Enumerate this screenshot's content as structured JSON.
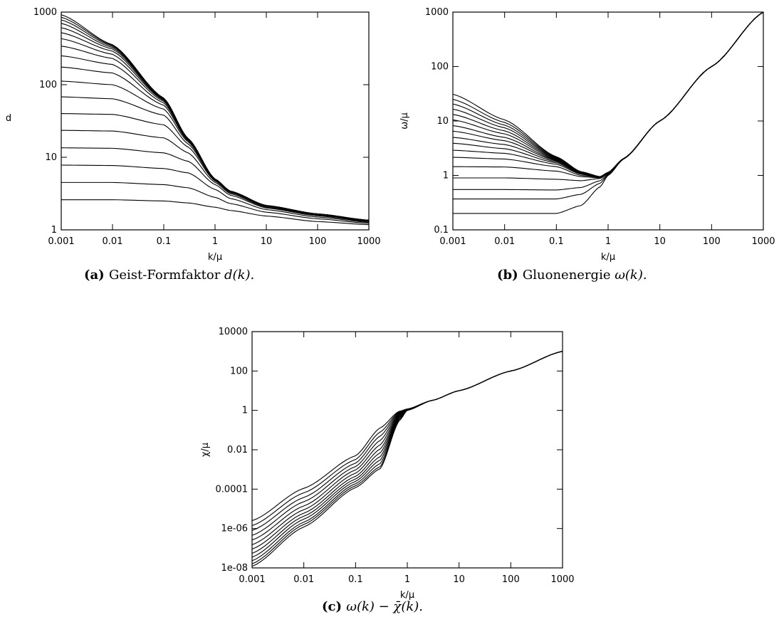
{
  "chart_data": [
    {
      "type": "line",
      "panel": "a",
      "xlabel": "k/μ",
      "ylabel": "d",
      "xscale": "log",
      "yscale": "log",
      "xlim": [
        0.001,
        1000
      ],
      "ylim": [
        1,
        1000
      ],
      "xticks": [
        0.001,
        0.01,
        0.1,
        1,
        10,
        100,
        1000
      ],
      "xtick_labels": [
        "0.001",
        "0.01",
        "0.1",
        "1",
        "10",
        "100",
        "1000"
      ],
      "yticks": [
        1,
        10,
        100,
        1000
      ],
      "ytick_labels": [
        "1",
        "10",
        "100",
        "1000"
      ],
      "grid": false,
      "caption_tag": "(a)",
      "caption_text": "Geist-Formfaktor",
      "caption_math": "d(k).",
      "x": [
        0.001,
        0.01,
        0.1,
        0.3,
        1,
        2,
        10,
        100,
        1000
      ],
      "series": [
        {
          "values": [
            2.6,
            2.6,
            2.5,
            2.35,
            2.05,
            1.85,
            1.55,
            1.3,
            1.18
          ]
        },
        {
          "values": [
            4.5,
            4.5,
            4.2,
            3.8,
            2.8,
            2.3,
            1.75,
            1.42,
            1.23
          ]
        },
        {
          "values": [
            7.8,
            7.7,
            7.0,
            6.1,
            3.6,
            2.7,
            1.9,
            1.5,
            1.27
          ]
        },
        {
          "values": [
            13.5,
            13.3,
            11.5,
            8.8,
            4.2,
            3.0,
            2.0,
            1.56,
            1.3
          ]
        },
        {
          "values": [
            23.5,
            23,
            18.5,
            11.5,
            4.5,
            3.15,
            2.05,
            1.6,
            1.32
          ]
        },
        {
          "values": [
            40,
            39,
            28,
            13.8,
            4.7,
            3.25,
            2.1,
            1.62,
            1.33
          ]
        },
        {
          "values": [
            68,
            64,
            38,
            15.2,
            4.8,
            3.3,
            2.12,
            1.63,
            1.34
          ]
        },
        {
          "values": [
            112,
            100,
            46,
            16.2,
            4.85,
            3.35,
            2.13,
            1.64,
            1.35
          ]
        },
        {
          "values": [
            175,
            145,
            52,
            16.8,
            4.9,
            3.37,
            2.14,
            1.64,
            1.35
          ]
        },
        {
          "values": [
            250,
            190,
            56,
            17.2,
            4.92,
            3.38,
            2.15,
            1.65,
            1.35
          ]
        },
        {
          "values": [
            340,
            230,
            59,
            17.5,
            4.95,
            3.39,
            2.15,
            1.65,
            1.35
          ]
        },
        {
          "values": [
            430,
            262,
            61,
            17.7,
            4.97,
            3.4,
            2.16,
            1.65,
            1.35
          ]
        },
        {
          "values": [
            520,
            290,
            62,
            17.8,
            4.98,
            3.4,
            2.16,
            1.65,
            1.35
          ]
        },
        {
          "values": [
            610,
            310,
            63,
            17.9,
            4.99,
            3.41,
            2.16,
            1.65,
            1.35
          ]
        },
        {
          "values": [
            700,
            325,
            64,
            18,
            5,
            3.41,
            2.16,
            1.66,
            1.36
          ]
        },
        {
          "values": [
            780,
            338,
            64.5,
            18,
            5,
            3.41,
            2.16,
            1.66,
            1.36
          ]
        },
        {
          "values": [
            850,
            348,
            65,
            18.1,
            5,
            3.42,
            2.17,
            1.66,
            1.36
          ]
        },
        {
          "values": [
            920,
            355,
            65.3,
            18.1,
            5.01,
            3.42,
            2.17,
            1.66,
            1.36
          ]
        }
      ]
    },
    {
      "type": "line",
      "panel": "b",
      "xlabel": "k/μ",
      "ylabel": "ω/μ",
      "xscale": "log",
      "yscale": "log",
      "xlim": [
        0.001,
        1000
      ],
      "ylim": [
        0.1,
        1000
      ],
      "xticks": [
        0.001,
        0.01,
        0.1,
        1,
        10,
        100,
        1000
      ],
      "xtick_labels": [
        "0.001",
        "0.01",
        "0.1",
        "1",
        "10",
        "100",
        "1000"
      ],
      "yticks": [
        0.1,
        1,
        10,
        100,
        1000
      ],
      "ytick_labels": [
        "0.1",
        "1",
        "10",
        "100",
        "1000"
      ],
      "grid": false,
      "caption_tag": "(b)",
      "caption_text": "Gluonenergie",
      "caption_math": "ω(k).",
      "x": [
        0.001,
        0.01,
        0.1,
        0.3,
        0.7,
        1,
        2,
        10,
        100,
        1000
      ],
      "series": [
        {
          "values": [
            0.2,
            0.2,
            0.2,
            0.28,
            0.62,
            1.0,
            2.0,
            10,
            100,
            1000
          ]
        },
        {
          "values": [
            0.37,
            0.37,
            0.37,
            0.45,
            0.72,
            1.02,
            2.0,
            10,
            100,
            1000
          ]
        },
        {
          "values": [
            0.55,
            0.55,
            0.54,
            0.6,
            0.8,
            1.05,
            2.0,
            10,
            100,
            1000
          ]
        },
        {
          "values": [
            0.9,
            0.9,
            0.85,
            0.8,
            0.88,
            1.08,
            2.02,
            10,
            100,
            1000
          ]
        },
        {
          "values": [
            1.45,
            1.43,
            1.2,
            0.95,
            0.9,
            1.1,
            2.03,
            10,
            100,
            1000
          ]
        },
        {
          "values": [
            2.15,
            2.0,
            1.45,
            1.0,
            0.92,
            1.11,
            2.03,
            10,
            100,
            1000
          ]
        },
        {
          "values": [
            2.9,
            2.55,
            1.6,
            1.05,
            0.92,
            1.12,
            2.03,
            10,
            100,
            1000
          ]
        },
        {
          "values": [
            3.9,
            3.1,
            1.7,
            1.08,
            0.93,
            1.12,
            2.03,
            10,
            100,
            1000
          ]
        },
        {
          "values": [
            5.0,
            3.7,
            1.78,
            1.1,
            0.93,
            1.12,
            2.04,
            10,
            100,
            1000
          ]
        },
        {
          "values": [
            6.5,
            4.35,
            1.85,
            1.12,
            0.94,
            1.13,
            2.04,
            10,
            100,
            1000
          ]
        },
        {
          "values": [
            8.2,
            5.0,
            1.9,
            1.13,
            0.94,
            1.13,
            2.04,
            10,
            100,
            1000
          ]
        },
        {
          "values": [
            10.5,
            5.8,
            1.95,
            1.14,
            0.94,
            1.13,
            2.04,
            10,
            100,
            1000
          ]
        },
        {
          "values": [
            13.2,
            6.6,
            2.0,
            1.15,
            0.94,
            1.13,
            2.04,
            10,
            100,
            1000
          ]
        },
        {
          "values": [
            16.5,
            7.5,
            2.05,
            1.15,
            0.95,
            1.13,
            2.04,
            10,
            100,
            1000
          ]
        },
        {
          "values": [
            20.5,
            8.4,
            2.1,
            1.16,
            0.95,
            1.13,
            2.04,
            10,
            100,
            1000
          ]
        },
        {
          "values": [
            25,
            9.4,
            2.15,
            1.16,
            0.95,
            1.13,
            2.04,
            10,
            100,
            1000
          ]
        },
        {
          "values": [
            31,
            10.5,
            2.2,
            1.17,
            0.95,
            1.14,
            2.05,
            10,
            100,
            1000
          ]
        }
      ]
    },
    {
      "type": "line",
      "panel": "c",
      "xlabel": "k/μ",
      "ylabel": "χ/μ",
      "xscale": "log",
      "yscale": "log",
      "xlim": [
        0.001,
        1000
      ],
      "ylim": [
        1e-08,
        10000
      ],
      "xticks": [
        0.001,
        0.01,
        0.1,
        1,
        10,
        100,
        1000
      ],
      "xtick_labels": [
        "0.001",
        "0.01",
        "0.1",
        "1",
        "10",
        "100",
        "1000"
      ],
      "yticks": [
        1e-08,
        1e-06,
        0.0001,
        0.01,
        1,
        100,
        10000
      ],
      "ytick_labels": [
        "1e-08",
        "1e-06",
        "0.0001",
        "0.01",
        "1",
        "100",
        "10000"
      ],
      "grid": false,
      "caption_tag": "(c)",
      "caption_text": "",
      "caption_math": "ω(k) − χ̄(k).",
      "x": [
        0.001,
        0.01,
        0.1,
        0.3,
        0.7,
        1,
        3,
        10,
        100,
        1000
      ],
      "series": [
        {
          "values": [
            1.2e-08,
            1.2e-06,
            0.00012,
            0.0011,
            0.3,
            1.0,
            3.2,
            10,
            100,
            1000
          ]
        },
        {
          "values": [
            1.6e-08,
            1.6e-06,
            0.00015,
            0.0014,
            0.35,
            1.0,
            3.2,
            10,
            100,
            1000
          ]
        },
        {
          "values": [
            2.3e-08,
            2.1e-06,
            0.00019,
            0.002,
            0.4,
            1.02,
            3.2,
            10,
            100,
            1000
          ]
        },
        {
          "values": [
            3.5e-08,
            3e-06,
            0.00025,
            0.003,
            0.45,
            1.03,
            3.2,
            10,
            100,
            1000
          ]
        },
        {
          "values": [
            5.5e-08,
            4.2e-06,
            0.00033,
            0.0045,
            0.5,
            1.05,
            3.2,
            10,
            100,
            1000
          ]
        },
        {
          "values": [
            9e-08,
            6e-06,
            0.00045,
            0.007,
            0.55,
            1.07,
            3.2,
            10,
            100,
            1000
          ]
        },
        {
          "values": [
            1.5e-07,
            9e-06,
            0.00065,
            0.011,
            0.6,
            1.09,
            3.2,
            10,
            100,
            1000
          ]
        },
        {
          "values": [
            2.6e-07,
            1.4e-05,
            0.00095,
            0.018,
            0.66,
            1.1,
            3.2,
            10,
            100,
            1000
          ]
        },
        {
          "values": [
            4.5e-07,
            2.3e-05,
            0.0014,
            0.03,
            0.72,
            1.12,
            3.2,
            10,
            100,
            1000
          ]
        },
        {
          "values": [
            8e-07,
            3.8e-05,
            0.0021,
            0.05,
            0.78,
            1.14,
            3.2,
            10,
            100,
            1000
          ]
        },
        {
          "values": [
            1.4e-06,
            6.5e-05,
            0.0032,
            0.08,
            0.84,
            1.16,
            3.2,
            10,
            100,
            1000
          ]
        },
        {
          "values": [
            2.5e-06,
            0.00011,
            0.005,
            0.13,
            0.9,
            1.18,
            3.2,
            10,
            100,
            1000
          ]
        }
      ]
    }
  ]
}
